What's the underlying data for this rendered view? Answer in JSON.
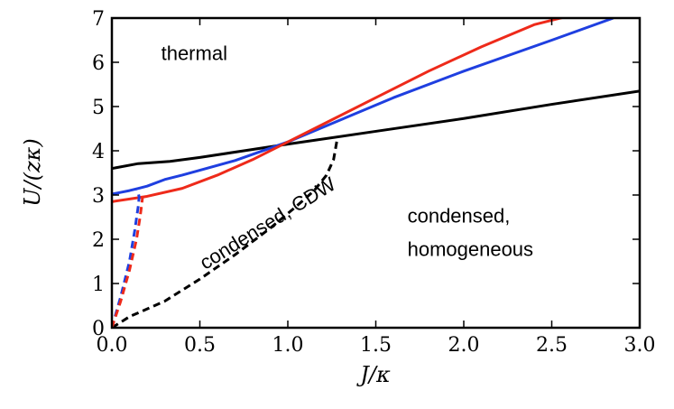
{
  "chart_data": {
    "type": "line",
    "title": "",
    "xlabel": "J/κ",
    "ylabel": "U/(zκ)",
    "xlim": [
      0,
      3
    ],
    "ylim": [
      0,
      7
    ],
    "xticks": [
      "0.0",
      "0.5",
      "1.0",
      "1.5",
      "2.0",
      "2.5",
      "3.0"
    ],
    "yticks": [
      "0",
      "1",
      "2",
      "3",
      "4",
      "5",
      "6",
      "7"
    ],
    "grid": false,
    "legend": "none",
    "series": [
      {
        "name": "black solid",
        "color": "#000000",
        "dash": "solid",
        "x": [
          0,
          0.15,
          0.33,
          0.5,
          0.75,
          1.0,
          1.5,
          2.0,
          2.5,
          3.0
        ],
        "y": [
          3.6,
          3.71,
          3.76,
          3.85,
          4.0,
          4.15,
          4.44,
          4.73,
          5.05,
          5.35
        ]
      },
      {
        "name": "black dashed",
        "color": "#000000",
        "dash": "dashed",
        "x": [
          0,
          0.1,
          0.3,
          0.5,
          0.7,
          0.9,
          1.05,
          1.15,
          1.22,
          1.26,
          1.28
        ],
        "y": [
          0,
          0.25,
          0.6,
          1.1,
          1.65,
          2.25,
          2.75,
          3.1,
          3.45,
          3.8,
          4.25
        ]
      },
      {
        "name": "blue solid",
        "color": "#1f3fe0",
        "dash": "solid",
        "x": [
          0,
          0.05,
          0.1,
          0.15,
          0.2,
          0.3,
          0.4,
          0.5,
          0.7,
          1.0,
          1.3,
          1.6,
          2.0,
          2.5,
          2.85
        ],
        "y": [
          3.02,
          3.06,
          3.1,
          3.15,
          3.2,
          3.35,
          3.45,
          3.56,
          3.78,
          4.2,
          4.7,
          5.2,
          5.8,
          6.5,
          7.0
        ]
      },
      {
        "name": "red solid",
        "color": "#ee2a1a",
        "dash": "solid",
        "x": [
          0,
          0.2,
          0.4,
          0.6,
          0.8,
          1.0,
          1.2,
          1.5,
          1.8,
          2.1,
          2.4,
          2.6
        ],
        "y": [
          2.85,
          2.97,
          3.15,
          3.45,
          3.8,
          4.2,
          4.6,
          5.2,
          5.8,
          6.35,
          6.85,
          7.05
        ]
      },
      {
        "name": "blue dashed",
        "color": "#1f3fe0",
        "dash": "dashed",
        "x": [
          0,
          0.05,
          0.1,
          0.13,
          0.15,
          0.155,
          0.15,
          0.14
        ],
        "y": [
          0,
          0.7,
          1.5,
          2.2,
          2.75,
          2.95,
          3.05,
          3.1
        ]
      },
      {
        "name": "red dashed",
        "color": "#ee2a1a",
        "dash": "dashed",
        "x": [
          0,
          0.05,
          0.1,
          0.14,
          0.16,
          0.17,
          0.175
        ],
        "y": [
          0,
          0.6,
          1.3,
          2.0,
          2.5,
          2.8,
          2.98
        ]
      }
    ],
    "annotations": [
      {
        "text": "thermal",
        "x": 0.28,
        "y": 6.05
      },
      {
        "text": "condensed,",
        "x": 1.68,
        "y": 2.38
      },
      {
        "text": "homogeneous",
        "x": 1.68,
        "y": 1.62
      },
      {
        "text": "condensed, CDW",
        "x": 0.53,
        "y": 1.3,
        "rotate": -32
      }
    ]
  }
}
